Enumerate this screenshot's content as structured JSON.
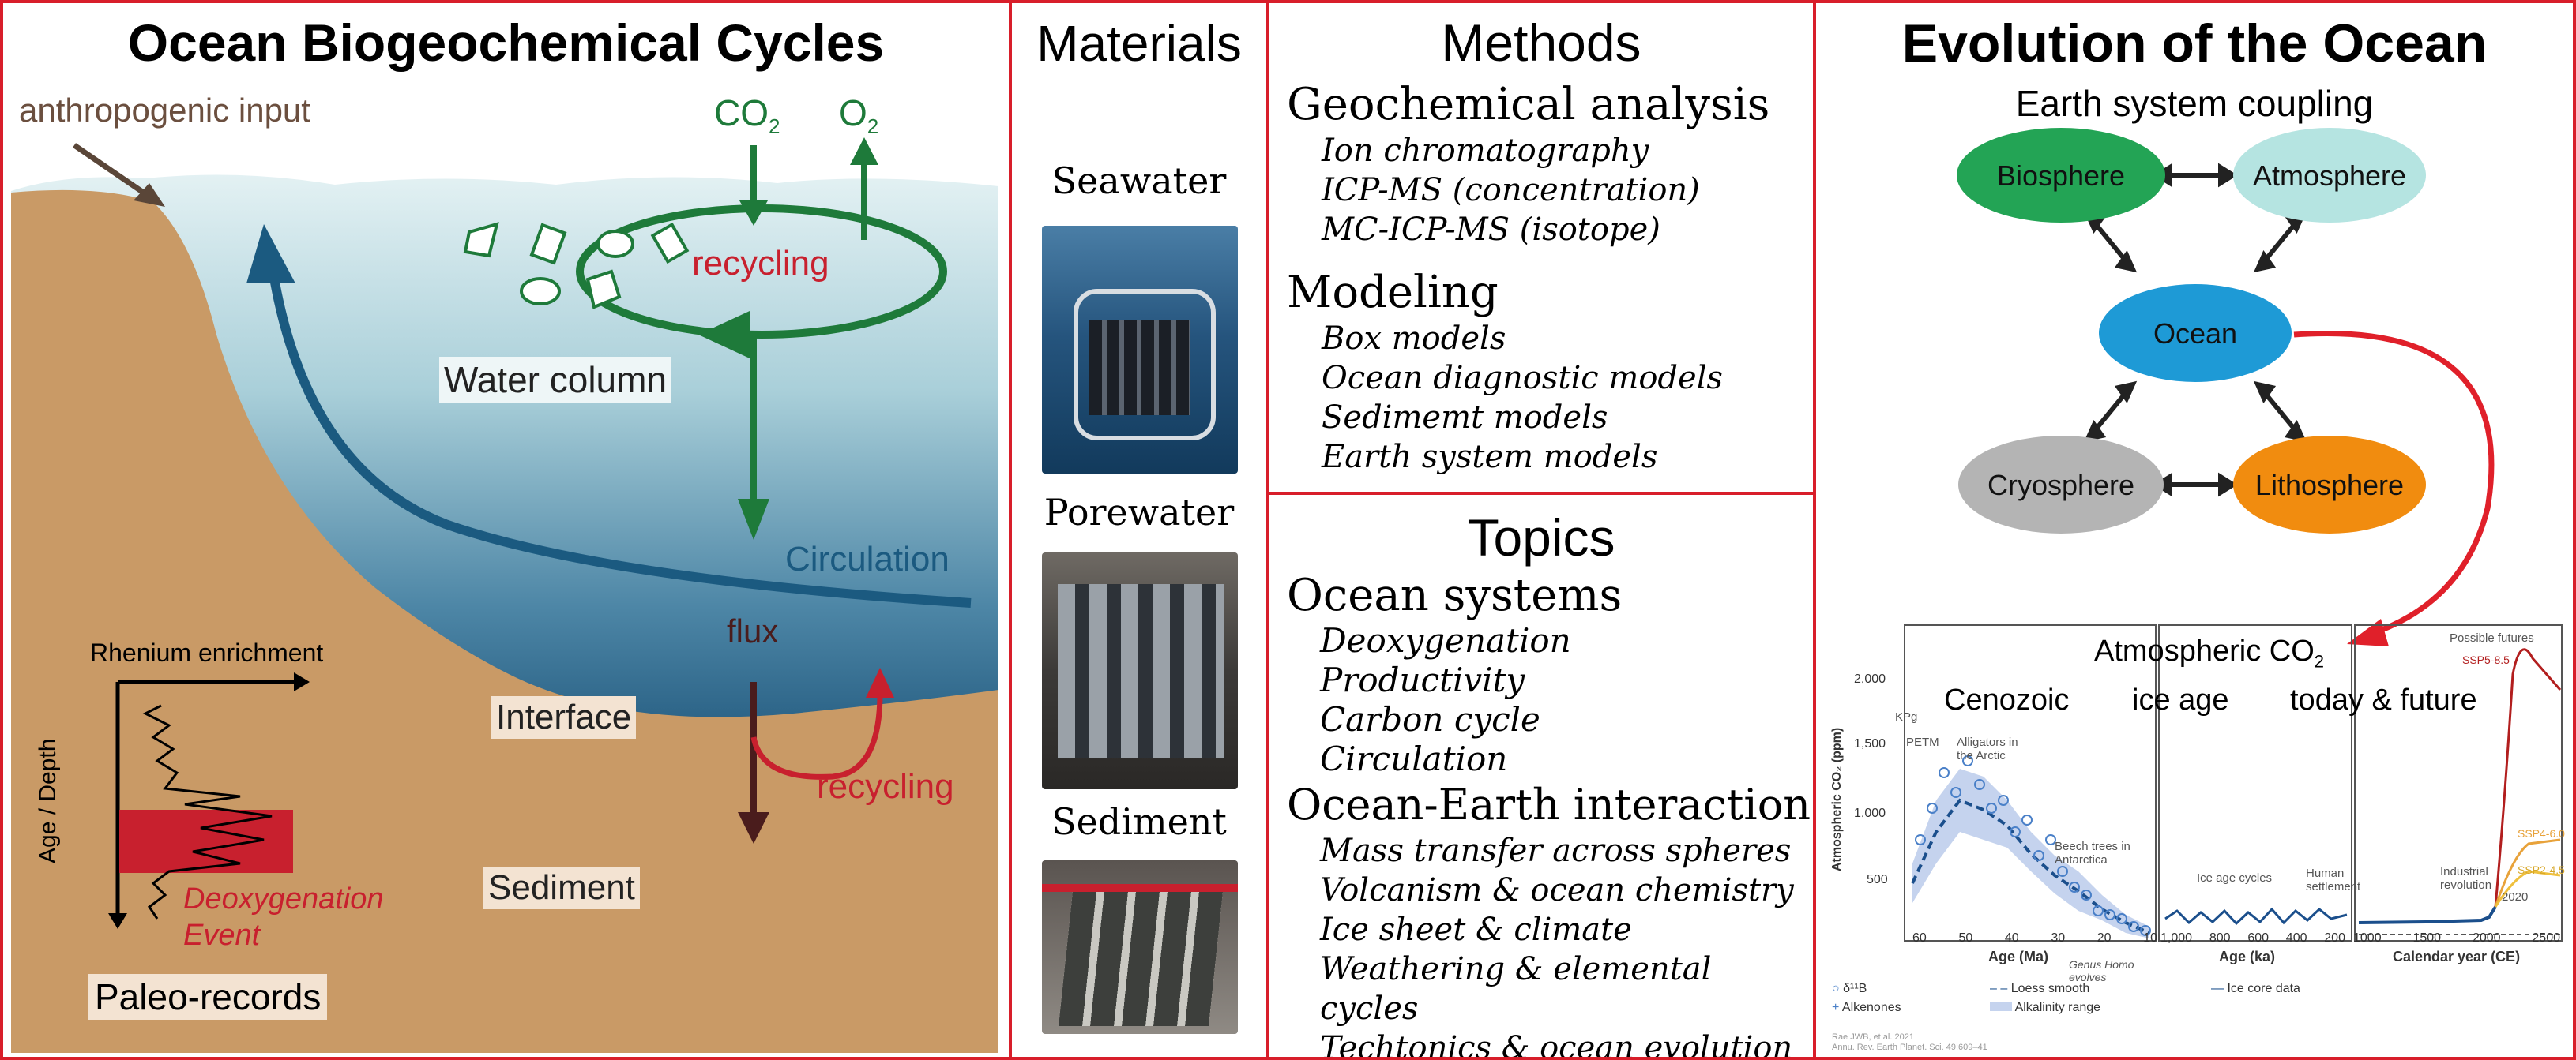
{
  "panel1": {
    "title": "Ocean Biogeochemical Cycles",
    "anthropogenic": "anthropogenic input",
    "co2": "CO",
    "co2_sub": "2",
    "o2": "O",
    "o2_sub": "2",
    "recycling_top": "recycling",
    "water_column": "Water column",
    "circulation": "Circulation",
    "flux": "flux",
    "interface": "Interface",
    "recycling_bottom": "recycling",
    "sediment": "Sediment",
    "rhenium": "Rhenium enrichment",
    "age_depth": "Age / Depth",
    "deoxy_line1": "Deoxygenation",
    "deoxy_line2": "Event",
    "paleo": "Paleo-records",
    "colors": {
      "green": "#1e7a3a",
      "red": "#c8202e",
      "blue": "#1b5a80",
      "sediment": "#c99a66"
    }
  },
  "panel2": {
    "title": "Materials",
    "items": [
      "Seawater",
      "Porewater",
      "Sediment"
    ]
  },
  "panel3": {
    "title": "Methods",
    "sections": [
      {
        "heading": "Geochemical analysis",
        "items": [
          "Ion chromatography",
          "ICP-MS (concentration)",
          "MC-ICP-MS (isotope)"
        ]
      },
      {
        "heading": "Modeling",
        "items": [
          "Box models",
          "Ocean diagnostic models",
          "Sedimemt models",
          "Earth system models"
        ]
      }
    ]
  },
  "panel4": {
    "title": "Topics",
    "sections": [
      {
        "heading": "Ocean systems",
        "items": [
          "Deoxygenation",
          "Productivity",
          "Carbon cycle",
          "Circulation"
        ]
      },
      {
        "heading": "Ocean-Earth interaction",
        "items": [
          "Mass transfer across spheres",
          "Volcanism & ocean chemistry",
          "Ice sheet & climate",
          "Weathering & elemental cycles",
          "Techtonics & ocean evolution"
        ]
      }
    ]
  },
  "panel5": {
    "title": "Evolution of the Ocean",
    "subtitle": "Earth system coupling",
    "nodes": {
      "biosphere": "Biosphere",
      "atmosphere": "Atmosphere",
      "ocean": "Ocean",
      "cryosphere": "Cryosphere",
      "lithosphere": "Lithosphere"
    },
    "node_colors": {
      "biosphere": "#23a455",
      "atmosphere": "#b5e4e1",
      "ocean": "#1e9ad6",
      "cryosphere": "#b4b4b4",
      "lithosphere": "#f18c0f"
    },
    "chart": {
      "title": "Atmospheric CO",
      "title_sub": "2",
      "eras": [
        "Cenozoic",
        "ice age",
        "today & future"
      ],
      "ylabel": "Atmospheric CO₂ (ppm)",
      "yticks": [
        "2,000",
        "1,500",
        "1,000",
        "500"
      ],
      "x1_label": "Age (Ma)",
      "x1_ticks": [
        "60",
        "50",
        "40",
        "30",
        "20",
        "10"
      ],
      "x2_label": "Age (ka)",
      "x2_ticks": [
        "1,000",
        "800",
        "600",
        "400",
        "200"
      ],
      "x3_label": "Calendar year (CE)",
      "x3_ticks": [
        "1000",
        "1500",
        "2000",
        "2500"
      ],
      "annotations": [
        "KPg",
        "PETM",
        "Alligators in the Arctic",
        "Beech trees in Antarctica",
        "Genus Homo evolves",
        "Ice age cycles",
        "Human settlement",
        "Industrial revolution",
        "2020",
        "Possible futures",
        "SSP5-8.5",
        "SSP4-6.0",
        "SSP2-4.5"
      ],
      "legend": [
        "δ¹¹B",
        "Alkenones",
        "Loess smooth",
        "Alkalinity range",
        "Ice core data"
      ],
      "citation_1": "Rae JWB, et al. 2021",
      "citation_2": "Annu. Rev. Earth Planet. Sci. 49:609–41"
    }
  }
}
